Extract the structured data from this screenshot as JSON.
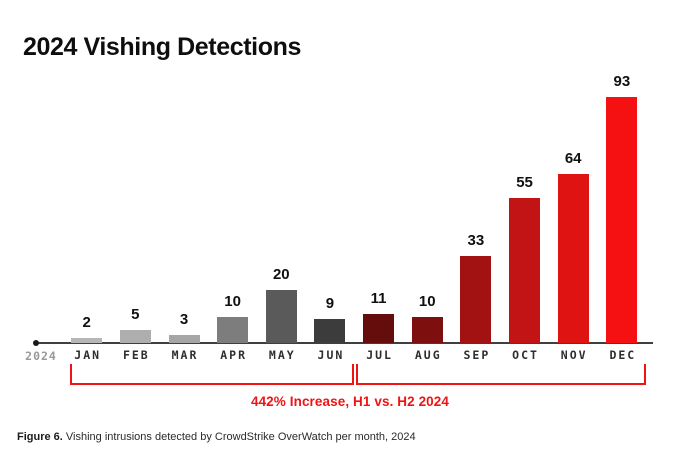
{
  "title": "2024 Vishing Detections",
  "chart_data": {
    "type": "bar",
    "categories": [
      "JAN",
      "FEB",
      "MAR",
      "APR",
      "MAY",
      "JUN",
      "JUL",
      "AUG",
      "SEP",
      "OCT",
      "NOV",
      "DEC"
    ],
    "values": [
      2,
      5,
      3,
      10,
      20,
      9,
      11,
      10,
      33,
      55,
      64,
      93
    ],
    "bar_colors": [
      "#b6b6b6",
      "#aeaeae",
      "#a6a6a6",
      "#7d7d7d",
      "#5a5a5a",
      "#3c3c3c",
      "#650d0d",
      "#7d0f0f",
      "#a21212",
      "#c21414",
      "#e01313",
      "#f51111"
    ],
    "title": "2024 Vishing Detections",
    "xlabel": "",
    "ylabel": "",
    "year_label": "2024",
    "value_labels_shown": true,
    "grid": false,
    "y_axis_shown": false,
    "ylim": [
      0,
      100
    ],
    "annotation": "442% Increase, H1 vs. H2 2024",
    "h1_bracket_span": [
      "JAN",
      "JUN"
    ],
    "h2_bracket_span": [
      "JUL",
      "DEC"
    ]
  },
  "caption": {
    "prefix": "Figure 6.",
    "text": " Vishing intrusions detected by CrowdStrike OverWatch per month, 2024"
  },
  "colors": {
    "background": "#ffffff",
    "title_text": "#0e0e0e",
    "accent_red": "#ef1313",
    "axis_line": "#3f3f3f",
    "month_label": "#2e2e2e",
    "year_label": "#999999",
    "value_label": "#101010",
    "caption_text": "#2b2b2b"
  }
}
